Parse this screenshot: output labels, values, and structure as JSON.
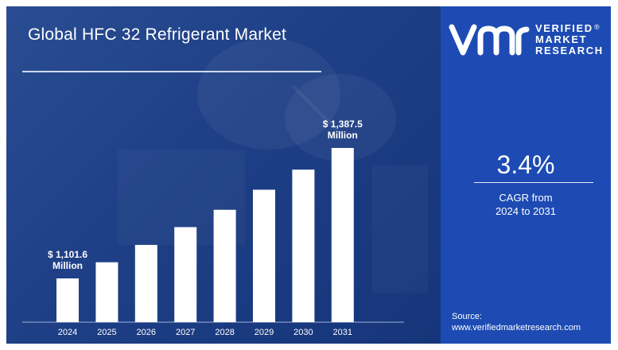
{
  "header": {
    "title": "Global HFC 32 Refrigerant Market"
  },
  "brand": {
    "line1": "VERIFIED",
    "line2": "MARKET",
    "line3": "RESEARCH",
    "registered": "®"
  },
  "cagr": {
    "value": "3.4%",
    "label_line1": "CAGR from",
    "label_line2": "2024 to 2031"
  },
  "source": {
    "label": "Source:",
    "url": "www.verifiedmarketresearch.com"
  },
  "colors": {
    "panel_left": "#1e3f86",
    "panel_right": "#1d4bb3",
    "bar": "#ffffff"
  },
  "chart_data": {
    "type": "bar",
    "title": "Global HFC 32 Refrigerant Market",
    "categories": [
      "2024",
      "2025",
      "2026",
      "2027",
      "2028",
      "2029",
      "2030",
      "2031"
    ],
    "values": [
      1101.6,
      1137,
      1175,
      1214,
      1252,
      1296,
      1340,
      1387.5
    ],
    "annotations": [
      {
        "category": "2024",
        "line1": "$ 1,101.6",
        "line2": "Million"
      },
      {
        "category": "2031",
        "line1": "$ 1,387.5",
        "line2": "Million"
      }
    ],
    "xlabel": "",
    "ylabel": "",
    "grid": false,
    "legend": "none"
  }
}
